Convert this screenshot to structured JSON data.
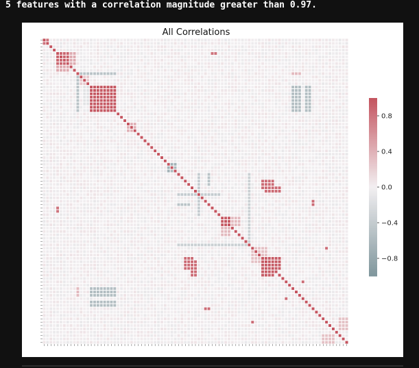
{
  "header": {
    "message": "5 features with a correlation magnitude greater than 0.97."
  },
  "chart_data": {
    "type": "heatmap",
    "title": "All Correlations",
    "n_features": 91,
    "colormap": {
      "negative": "#7f969c",
      "zero": "#f2eff1",
      "positive": "#c4545f"
    },
    "colorbar": {
      "vmin": -1.0,
      "vmax": 1.0,
      "ticks": [
        0.8,
        0.4,
        0.0,
        -0.4,
        -0.8
      ],
      "tick_labels": [
        "0.8",
        "0.4",
        "0.0",
        "−0.4",
        "−0.8"
      ]
    },
    "diagonal_value": 1.0,
    "blocks": [
      {
        "rows": [
          4,
          7
        ],
        "cols": [
          4,
          7
        ],
        "value": 0.9
      },
      {
        "rows": [
          4,
          7
        ],
        "cols": [
          8,
          9
        ],
        "value": 0.45
      },
      {
        "rows": [
          8,
          9
        ],
        "cols": [
          4,
          7
        ],
        "value": 0.45
      },
      {
        "rows": [
          14,
          21
        ],
        "cols": [
          14,
          21
        ],
        "value": 0.97
      },
      {
        "rows": [
          11,
          13
        ],
        "cols": [
          11,
          13
        ],
        "value": 0.25
      },
      {
        "rows": [
          10,
          10
        ],
        "cols": [
          11,
          21
        ],
        "value": -0.5
      },
      {
        "rows": [
          11,
          21
        ],
        "cols": [
          10,
          10
        ],
        "value": -0.5
      },
      {
        "rows": [
          14,
          19
        ],
        "cols": [
          12,
          13
        ],
        "value": -0.15
      },
      {
        "rows": [
          14,
          21
        ],
        "cols": [
          78,
          79
        ],
        "value": -0.55
      },
      {
        "rows": [
          78,
          79
        ],
        "cols": [
          14,
          21
        ],
        "value": -0.55
      },
      {
        "rows": [
          74,
          76
        ],
        "cols": [
          14,
          21
        ],
        "value": -0.55
      },
      {
        "rows": [
          14,
          21
        ],
        "cols": [
          74,
          76
        ],
        "value": -0.55
      },
      {
        "rows": [
          74,
          76
        ],
        "cols": [
          10,
          10
        ],
        "value": 0.35
      },
      {
        "rows": [
          10,
          10
        ],
        "cols": [
          74,
          76
        ],
        "value": 0.35
      },
      {
        "rows": [
          37,
          39
        ],
        "cols": [
          37,
          39
        ],
        "value": -0.6
      },
      {
        "rows": [
          37,
          37
        ],
        "cols": [
          38,
          39
        ],
        "value": -0.7
      },
      {
        "rows": [
          38,
          39
        ],
        "cols": [
          37,
          37
        ],
        "value": -0.7
      },
      {
        "rows": [
          46,
          46
        ],
        "cols": [
          40,
          52
        ],
        "value": -0.4
      },
      {
        "rows": [
          40,
          52
        ],
        "cols": [
          46,
          46
        ],
        "value": -0.4
      },
      {
        "rows": [
          49,
          49
        ],
        "cols": [
          40,
          43
        ],
        "value": -0.5
      },
      {
        "rows": [
          40,
          43
        ],
        "cols": [
          49,
          49
        ],
        "value": -0.5
      },
      {
        "rows": [
          53,
          55
        ],
        "cols": [
          53,
          55
        ],
        "value": 0.95
      },
      {
        "rows": [
          53,
          55
        ],
        "cols": [
          56,
          58
        ],
        "value": 0.35
      },
      {
        "rows": [
          56,
          58
        ],
        "cols": [
          53,
          55
        ],
        "value": 0.35
      },
      {
        "rows": [
          62,
          66
        ],
        "cols": [
          62,
          66
        ],
        "value": 0.3
      },
      {
        "rows": [
          61,
          61
        ],
        "cols": [
          40,
          60
        ],
        "value": -0.35
      },
      {
        "rows": [
          40,
          60
        ],
        "cols": [
          61,
          61
        ],
        "value": -0.35
      },
      {
        "rows": [
          65,
          68
        ],
        "cols": [
          66,
          70
        ],
        "value": 0.95
      },
      {
        "rows": [
          66,
          70
        ],
        "cols": [
          65,
          68
        ],
        "value": 0.95
      },
      {
        "rows": [
          42,
          44
        ],
        "cols": [
          65,
          68
        ],
        "value": 0.85
      },
      {
        "rows": [
          65,
          68
        ],
        "cols": [
          42,
          44
        ],
        "value": 0.85
      },
      {
        "rows": [
          66,
          70
        ],
        "cols": [
          44,
          45
        ],
        "value": 0.85
      },
      {
        "rows": [
          44,
          45
        ],
        "cols": [
          66,
          70
        ],
        "value": 0.85
      },
      {
        "rows": [
          48,
          49
        ],
        "cols": [
          80,
          80
        ],
        "value": 0.85
      },
      {
        "rows": [
          80,
          80
        ],
        "cols": [
          48,
          49
        ],
        "value": 0.85
      },
      {
        "rows": [
          50,
          51
        ],
        "cols": [
          4,
          4
        ],
        "value": 0.8
      },
      {
        "rows": [
          4,
          4
        ],
        "cols": [
          50,
          51
        ],
        "value": 0.8
      },
      {
        "rows": [
          88,
          90
        ],
        "cols": [
          83,
          86
        ],
        "value": 0.3
      },
      {
        "rows": [
          83,
          86
        ],
        "cols": [
          88,
          90
        ],
        "value": 0.3
      },
      {
        "rows": [
          72,
          72
        ],
        "cols": [
          77,
          77
        ],
        "value": 0.85
      },
      {
        "rows": [
          77,
          77
        ],
        "cols": [
          72,
          72
        ],
        "value": 0.85
      },
      {
        "rows": [
          62,
          62
        ],
        "cols": [
          84,
          84
        ],
        "value": 0.85
      },
      {
        "rows": [
          84,
          84
        ],
        "cols": [
          62,
          62
        ],
        "value": 0.85
      },
      {
        "rows": [
          25,
          27
        ],
        "cols": [
          25,
          27
        ],
        "value": 0.4
      },
      {
        "rows": [
          0,
          0
        ],
        "cols": [
          1,
          1
        ],
        "value": 0.8
      },
      {
        "rows": [
          1,
          1
        ],
        "cols": [
          0,
          0
        ],
        "value": 0.8
      }
    ]
  }
}
